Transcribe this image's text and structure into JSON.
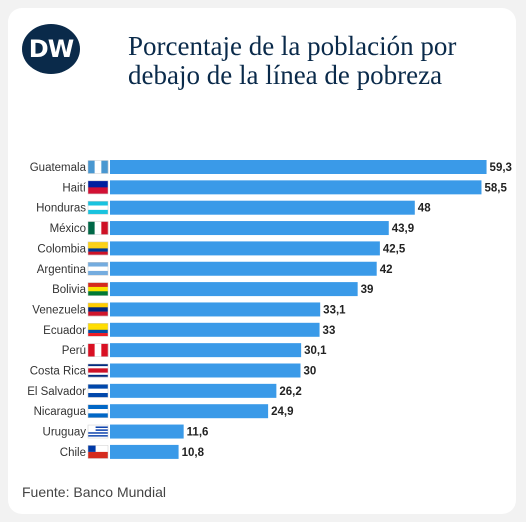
{
  "header": {
    "logo_text": "DW",
    "title": "Porcentaje de la población por debajo de la línea de pobreza"
  },
  "footer": {
    "source": "Fuente: Banco Mundial"
  },
  "colors": {
    "bar": "#3a9ae8",
    "title": "#0a2a4a",
    "label": "#333333"
  },
  "chart_data": {
    "type": "bar",
    "orientation": "horizontal",
    "title": "Porcentaje de la población por debajo de la línea de pobreza",
    "xlabel": "",
    "ylabel": "",
    "xlim": [
      0,
      60
    ],
    "grid": false,
    "categories": [
      "Guatemala",
      "Haití",
      "Honduras",
      "México",
      "Colombia",
      "Argentina",
      "Bolivia",
      "Venezuela",
      "Ecuador",
      "Perú",
      "Costa Rica",
      "El Salvador",
      "Nicaragua",
      "Uruguay",
      "Chile"
    ],
    "values": [
      59.3,
      58.5,
      48,
      43.9,
      42.5,
      42,
      39,
      33.1,
      33,
      30.1,
      30,
      26.2,
      24.9,
      11.6,
      10.8
    ],
    "value_labels": [
      "59,3",
      "58,5",
      "48",
      "43,9",
      "42,5",
      "42",
      "39",
      "33,1",
      "33",
      "30,1",
      "30",
      "26,2",
      "24,9",
      "11,6",
      "10,8"
    ]
  }
}
